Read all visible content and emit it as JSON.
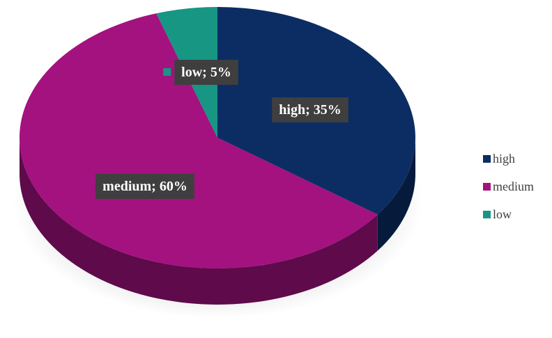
{
  "chart_data": {
    "type": "pie",
    "style": "3d",
    "categories": [
      "high",
      "medium",
      "low"
    ],
    "values": [
      35,
      60,
      5
    ],
    "unit": "%",
    "colors": [
      "#0b2d63",
      "#a3127f",
      "#179683"
    ],
    "side_colors": [
      "#061a3b",
      "#5e0a4b",
      "#0d5a4e"
    ],
    "data_labels": [
      "high; 35%",
      "medium; 60%",
      "low; 5%"
    ],
    "legend_position": "right",
    "title": ""
  },
  "legend": {
    "items": [
      {
        "label": "high",
        "color": "#0b2d63"
      },
      {
        "label": "medium",
        "color": "#a3127f"
      },
      {
        "label": "low",
        "color": "#179683"
      }
    ]
  }
}
